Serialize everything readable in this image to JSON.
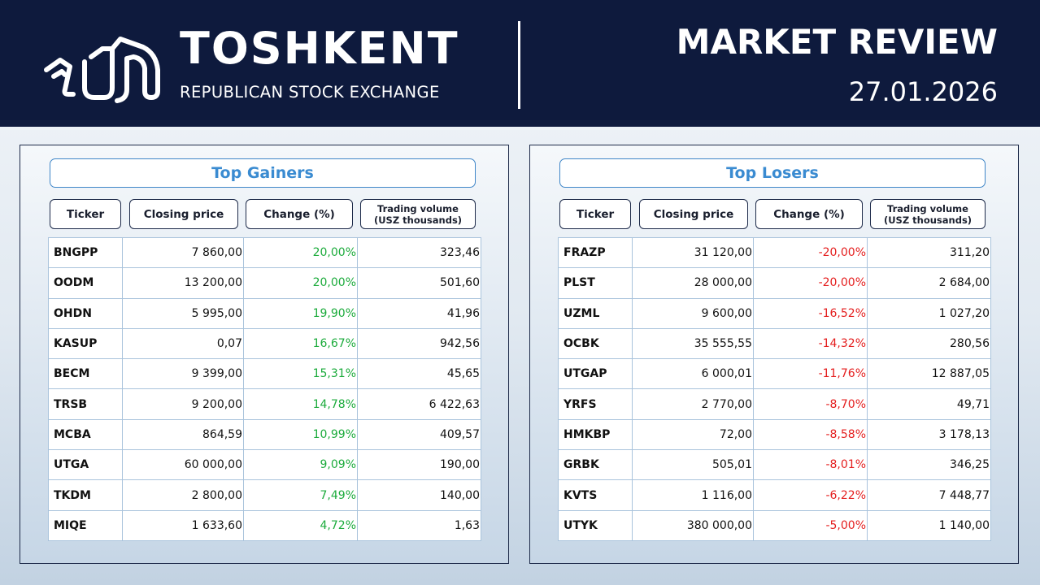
{
  "header": {
    "brand_title": "TOSHKENT",
    "brand_subtitle": "REPUBLICAN STOCK EXCHANGE",
    "review_title": "MARKET REVIEW",
    "review_date": "27.01.2026"
  },
  "colors": {
    "header_bg": "#0e1a3d",
    "accent_blue": "#3a8bd1",
    "positive": "#1cab3c",
    "negative": "#e41e1e"
  },
  "columns": {
    "ticker": "Ticker",
    "closing_price": "Closing price",
    "change": "Change (%)",
    "volume_line1": "Trading volume",
    "volume_line2": "(USZ thousands)"
  },
  "gainers": {
    "title": "Top Gainers",
    "rows": [
      {
        "ticker": "BNGPP",
        "price": "7 860,00",
        "change": "20,00%",
        "volume": "323,46"
      },
      {
        "ticker": "OODM",
        "price": "13 200,00",
        "change": "20,00%",
        "volume": "501,60"
      },
      {
        "ticker": "OHDN",
        "price": "5 995,00",
        "change": "19,90%",
        "volume": "41,96"
      },
      {
        "ticker": "KASUP",
        "price": "0,07",
        "change": "16,67%",
        "volume": "942,56"
      },
      {
        "ticker": "BECM",
        "price": "9 399,00",
        "change": "15,31%",
        "volume": "45,65"
      },
      {
        "ticker": "TRSB",
        "price": "9 200,00",
        "change": "14,78%",
        "volume": "6 422,63"
      },
      {
        "ticker": "MCBA",
        "price": "864,59",
        "change": "10,99%",
        "volume": "409,57"
      },
      {
        "ticker": "UTGA",
        "price": "60 000,00",
        "change": "9,09%",
        "volume": "190,00"
      },
      {
        "ticker": "TKDM",
        "price": "2 800,00",
        "change": "7,49%",
        "volume": "140,00"
      },
      {
        "ticker": "MIQE",
        "price": "1 633,60",
        "change": "4,72%",
        "volume": "1,63"
      }
    ]
  },
  "losers": {
    "title": "Top Losers",
    "rows": [
      {
        "ticker": "FRAZP",
        "price": "31 120,00",
        "change": "-20,00%",
        "volume": "311,20"
      },
      {
        "ticker": "PLST",
        "price": "28 000,00",
        "change": "-20,00%",
        "volume": "2 684,00"
      },
      {
        "ticker": "UZML",
        "price": "9 600,00",
        "change": "-16,52%",
        "volume": "1 027,20"
      },
      {
        "ticker": "OCBK",
        "price": "35 555,55",
        "change": "-14,32%",
        "volume": "280,56"
      },
      {
        "ticker": "UTGAP",
        "price": "6 000,01",
        "change": "-11,76%",
        "volume": "12 887,05"
      },
      {
        "ticker": "YRFS",
        "price": "2 770,00",
        "change": "-8,70%",
        "volume": "49,71"
      },
      {
        "ticker": "HMKBP",
        "price": "72,00",
        "change": "-8,58%",
        "volume": "3 178,13"
      },
      {
        "ticker": "GRBK",
        "price": "505,01",
        "change": "-8,01%",
        "volume": "346,25"
      },
      {
        "ticker": "KVTS",
        "price": "1 116,00",
        "change": "-6,22%",
        "volume": "7 448,77"
      },
      {
        "ticker": "UTYK",
        "price": "380 000,00",
        "change": "-5,00%",
        "volume": "1 140,00"
      }
    ]
  }
}
